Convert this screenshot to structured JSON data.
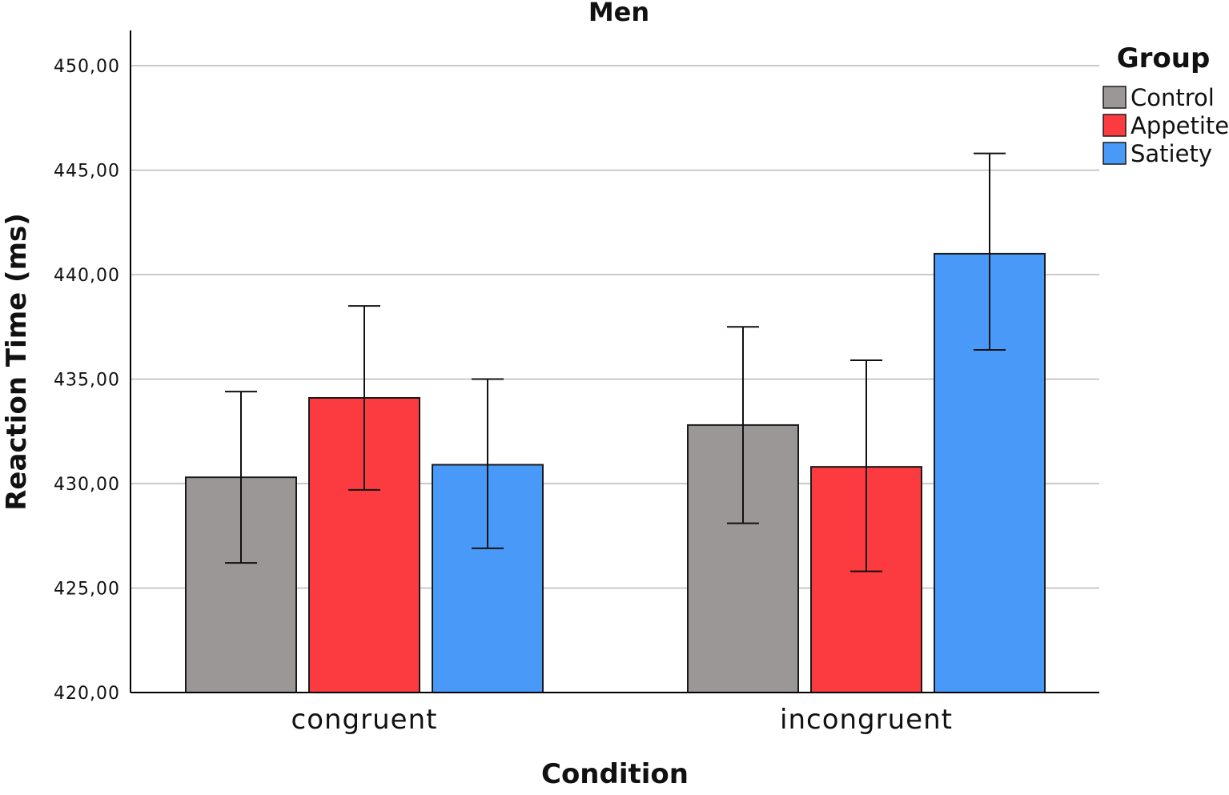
{
  "chart_data": {
    "type": "bar",
    "title": "Men",
    "xlabel": "Condition",
    "ylabel": "Reaction Time (ms)",
    "ylim": [
      420,
      452
    ],
    "yticks": [
      {
        "value": 420,
        "label": "420,00"
      },
      {
        "value": 425,
        "label": "425,00"
      },
      {
        "value": 430,
        "label": "430,00"
      },
      {
        "value": 435,
        "label": "435,00"
      },
      {
        "value": 440,
        "label": "440,00"
      },
      {
        "value": 445,
        "label": "445,00"
      },
      {
        "value": 450,
        "label": "450,00"
      }
    ],
    "grid": true,
    "categories": [
      "congruent",
      "incongruent"
    ],
    "legend": {
      "title": "Group",
      "position": "top-right"
    },
    "series": [
      {
        "name": "Control",
        "color": "#9b9796",
        "values": [
          430.3,
          432.8
        ],
        "error_low": [
          426.2,
          428.1
        ],
        "error_high": [
          434.4,
          437.5
        ]
      },
      {
        "name": "Appetite",
        "color": "#fb3b40",
        "values": [
          434.1,
          430.8
        ],
        "error_low": [
          429.7,
          425.8
        ],
        "error_high": [
          438.5,
          435.9
        ]
      },
      {
        "name": "Satiety",
        "color": "#4899f8",
        "values": [
          430.9,
          441.0
        ],
        "error_low": [
          426.9,
          436.4
        ],
        "error_high": [
          435.0,
          445.8
        ]
      }
    ]
  }
}
